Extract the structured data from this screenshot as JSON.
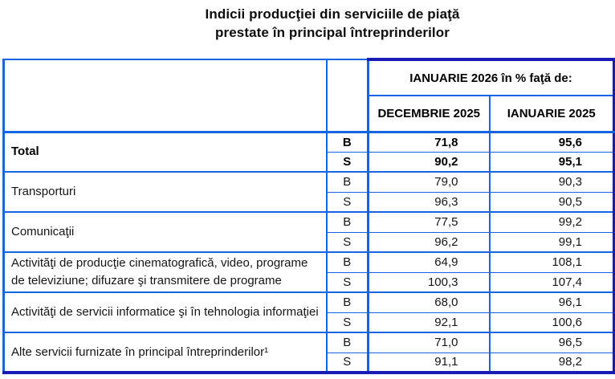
{
  "page_title": {
    "line1": "Indicii producţiei din serviciile de piaţă",
    "line2": "prestate în principal întreprinderilor"
  },
  "table": {
    "column_group_header": "IANUARIE 2026 în % faţă de:",
    "column_headers": {
      "dec": "DECEMBRIE 2025",
      "ian": "IANUARIE 2025"
    },
    "series_letters": {
      "b": "B",
      "s": "S"
    },
    "rows": [
      {
        "label": "Total",
        "b_dec": "71,8",
        "b_ian": "95,6",
        "s_dec": "90,2",
        "s_ian": "95,1"
      },
      {
        "label": "Transporturi",
        "b_dec": "79,0",
        "b_ian": "90,3",
        "s_dec": "96,3",
        "s_ian": "90,5"
      },
      {
        "label": "Comunicaţii",
        "b_dec": "77,5",
        "b_ian": "99,2",
        "s_dec": "96,2",
        "s_ian": "99,1"
      },
      {
        "label": "Activităţi de producţie cinematografică, video, programe de televiziune; difuzare şi transmitere de programe",
        "b_dec": "64,9",
        "b_ian": "108,1",
        "s_dec": "100,3",
        "s_ian": "107,4"
      },
      {
        "label": "Activităţi de servicii informatice şi în tehnologia informaţiei",
        "b_dec": "68,0",
        "b_ian": "96,1",
        "s_dec": "92,1",
        "s_ian": "100,6"
      },
      {
        "label": "Alte servicii furnizate în principal întreprinderilor¹",
        "b_dec": "71,0",
        "b_ian": "96,5",
        "s_dec": "91,1",
        "s_ian": "98,2"
      }
    ],
    "colors": {
      "border_blue": "#1464e4",
      "border_navy": "#1a1ab4"
    }
  }
}
